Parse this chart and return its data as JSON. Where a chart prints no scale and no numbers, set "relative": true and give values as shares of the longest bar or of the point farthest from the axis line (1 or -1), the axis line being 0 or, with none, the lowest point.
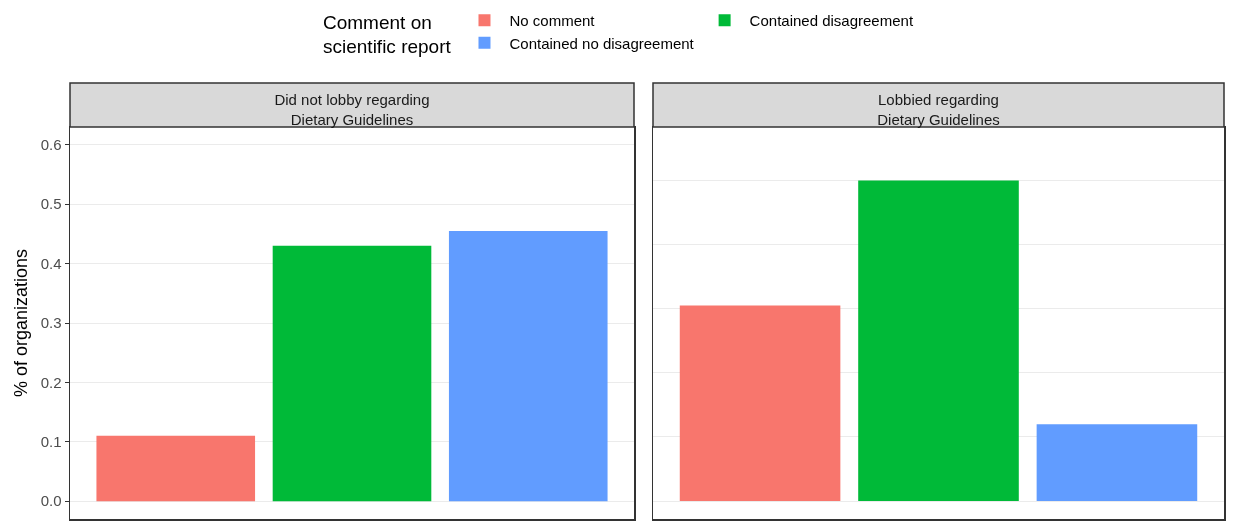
{
  "chart_data": [
    {
      "type": "bar",
      "title": "Did not lobby regarding Dietary Guidelines",
      "ylabel": "% of organizations",
      "legend_title": "Comment on scientific report",
      "legend": "top",
      "categories": [
        null,
        null,
        null
      ],
      "ylim": [
        -0.03,
        0.63
      ],
      "yticks": [
        {
          "value": 0,
          "label": "0.0"
        },
        0.1,
        0.2,
        0.3,
        0.4,
        0.5,
        0.6
      ],
      "grid": true,
      "tick_labels": "y",
      "series": [
        {
          "name": "No comment",
          "color": "#f8766d",
          "values": [
            0.11,
            null,
            null
          ]
        },
        {
          "name": "Contained disagreement",
          "color": "#00ba38",
          "values": [
            null,
            0.43,
            null
          ]
        },
        {
          "name": "Contained no disagreement",
          "color": "#619cff",
          "values": [
            null,
            null,
            0.455
          ]
        }
      ]
    },
    {
      "type": "bar",
      "title": "Lobbied regarding Dietary Guidelines",
      "categories": [
        null,
        null,
        null
      ],
      "grid": true,
      "relative": true,
      "tick_labels": false,
      "values": [
        0.61,
        1,
        0.24
      ],
      "colors": [
        "#f8766d",
        "#00ba38",
        "#619cff"
      ]
    }
  ]
}
